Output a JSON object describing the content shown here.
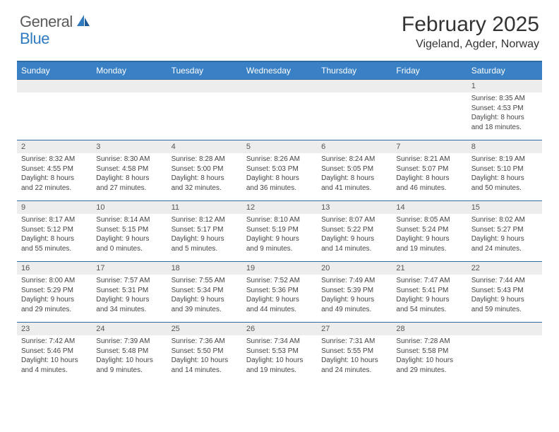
{
  "logo": {
    "general": "General",
    "blue": "Blue"
  },
  "title": "February 2025",
  "location": "Vigeland, Agder, Norway",
  "colors": {
    "header_bg": "#3a80c4",
    "header_border": "#2f6aa3",
    "daynum_bg": "#ededed",
    "text": "#333333",
    "logo_blue": "#2f7abf"
  },
  "weekdays": [
    "Sunday",
    "Monday",
    "Tuesday",
    "Wednesday",
    "Thursday",
    "Friday",
    "Saturday"
  ],
  "weeks": [
    [
      {
        "n": "",
        "sr": "",
        "ss": "",
        "dl": ""
      },
      {
        "n": "",
        "sr": "",
        "ss": "",
        "dl": ""
      },
      {
        "n": "",
        "sr": "",
        "ss": "",
        "dl": ""
      },
      {
        "n": "",
        "sr": "",
        "ss": "",
        "dl": ""
      },
      {
        "n": "",
        "sr": "",
        "ss": "",
        "dl": ""
      },
      {
        "n": "",
        "sr": "",
        "ss": "",
        "dl": ""
      },
      {
        "n": "1",
        "sr": "Sunrise: 8:35 AM",
        "ss": "Sunset: 4:53 PM",
        "dl": "Daylight: 8 hours and 18 minutes."
      }
    ],
    [
      {
        "n": "2",
        "sr": "Sunrise: 8:32 AM",
        "ss": "Sunset: 4:55 PM",
        "dl": "Daylight: 8 hours and 22 minutes."
      },
      {
        "n": "3",
        "sr": "Sunrise: 8:30 AM",
        "ss": "Sunset: 4:58 PM",
        "dl": "Daylight: 8 hours and 27 minutes."
      },
      {
        "n": "4",
        "sr": "Sunrise: 8:28 AM",
        "ss": "Sunset: 5:00 PM",
        "dl": "Daylight: 8 hours and 32 minutes."
      },
      {
        "n": "5",
        "sr": "Sunrise: 8:26 AM",
        "ss": "Sunset: 5:03 PM",
        "dl": "Daylight: 8 hours and 36 minutes."
      },
      {
        "n": "6",
        "sr": "Sunrise: 8:24 AM",
        "ss": "Sunset: 5:05 PM",
        "dl": "Daylight: 8 hours and 41 minutes."
      },
      {
        "n": "7",
        "sr": "Sunrise: 8:21 AM",
        "ss": "Sunset: 5:07 PM",
        "dl": "Daylight: 8 hours and 46 minutes."
      },
      {
        "n": "8",
        "sr": "Sunrise: 8:19 AM",
        "ss": "Sunset: 5:10 PM",
        "dl": "Daylight: 8 hours and 50 minutes."
      }
    ],
    [
      {
        "n": "9",
        "sr": "Sunrise: 8:17 AM",
        "ss": "Sunset: 5:12 PM",
        "dl": "Daylight: 8 hours and 55 minutes."
      },
      {
        "n": "10",
        "sr": "Sunrise: 8:14 AM",
        "ss": "Sunset: 5:15 PM",
        "dl": "Daylight: 9 hours and 0 minutes."
      },
      {
        "n": "11",
        "sr": "Sunrise: 8:12 AM",
        "ss": "Sunset: 5:17 PM",
        "dl": "Daylight: 9 hours and 5 minutes."
      },
      {
        "n": "12",
        "sr": "Sunrise: 8:10 AM",
        "ss": "Sunset: 5:19 PM",
        "dl": "Daylight: 9 hours and 9 minutes."
      },
      {
        "n": "13",
        "sr": "Sunrise: 8:07 AM",
        "ss": "Sunset: 5:22 PM",
        "dl": "Daylight: 9 hours and 14 minutes."
      },
      {
        "n": "14",
        "sr": "Sunrise: 8:05 AM",
        "ss": "Sunset: 5:24 PM",
        "dl": "Daylight: 9 hours and 19 minutes."
      },
      {
        "n": "15",
        "sr": "Sunrise: 8:02 AM",
        "ss": "Sunset: 5:27 PM",
        "dl": "Daylight: 9 hours and 24 minutes."
      }
    ],
    [
      {
        "n": "16",
        "sr": "Sunrise: 8:00 AM",
        "ss": "Sunset: 5:29 PM",
        "dl": "Daylight: 9 hours and 29 minutes."
      },
      {
        "n": "17",
        "sr": "Sunrise: 7:57 AM",
        "ss": "Sunset: 5:31 PM",
        "dl": "Daylight: 9 hours and 34 minutes."
      },
      {
        "n": "18",
        "sr": "Sunrise: 7:55 AM",
        "ss": "Sunset: 5:34 PM",
        "dl": "Daylight: 9 hours and 39 minutes."
      },
      {
        "n": "19",
        "sr": "Sunrise: 7:52 AM",
        "ss": "Sunset: 5:36 PM",
        "dl": "Daylight: 9 hours and 44 minutes."
      },
      {
        "n": "20",
        "sr": "Sunrise: 7:49 AM",
        "ss": "Sunset: 5:39 PM",
        "dl": "Daylight: 9 hours and 49 minutes."
      },
      {
        "n": "21",
        "sr": "Sunrise: 7:47 AM",
        "ss": "Sunset: 5:41 PM",
        "dl": "Daylight: 9 hours and 54 minutes."
      },
      {
        "n": "22",
        "sr": "Sunrise: 7:44 AM",
        "ss": "Sunset: 5:43 PM",
        "dl": "Daylight: 9 hours and 59 minutes."
      }
    ],
    [
      {
        "n": "23",
        "sr": "Sunrise: 7:42 AM",
        "ss": "Sunset: 5:46 PM",
        "dl": "Daylight: 10 hours and 4 minutes."
      },
      {
        "n": "24",
        "sr": "Sunrise: 7:39 AM",
        "ss": "Sunset: 5:48 PM",
        "dl": "Daylight: 10 hours and 9 minutes."
      },
      {
        "n": "25",
        "sr": "Sunrise: 7:36 AM",
        "ss": "Sunset: 5:50 PM",
        "dl": "Daylight: 10 hours and 14 minutes."
      },
      {
        "n": "26",
        "sr": "Sunrise: 7:34 AM",
        "ss": "Sunset: 5:53 PM",
        "dl": "Daylight: 10 hours and 19 minutes."
      },
      {
        "n": "27",
        "sr": "Sunrise: 7:31 AM",
        "ss": "Sunset: 5:55 PM",
        "dl": "Daylight: 10 hours and 24 minutes."
      },
      {
        "n": "28",
        "sr": "Sunrise: 7:28 AM",
        "ss": "Sunset: 5:58 PM",
        "dl": "Daylight: 10 hours and 29 minutes."
      },
      {
        "n": "",
        "sr": "",
        "ss": "",
        "dl": ""
      }
    ]
  ]
}
